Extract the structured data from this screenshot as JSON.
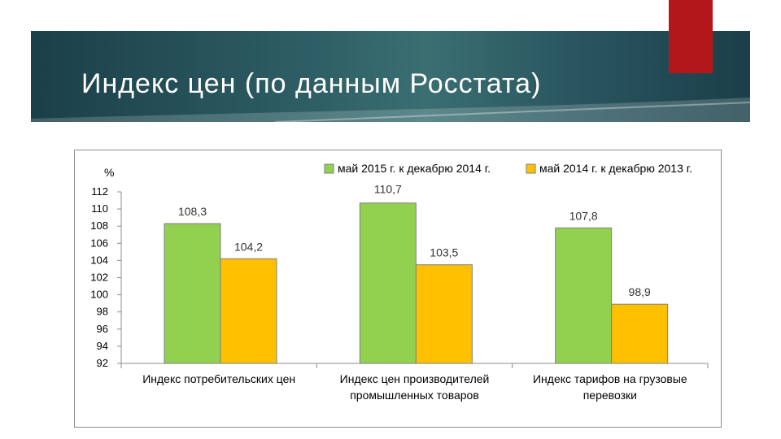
{
  "header": {
    "title": "Индекс цен (по данным Росстата)"
  },
  "colors": {
    "banner": "#2f5f66",
    "accent_tab": "#b4171b",
    "series_1": "#92d050",
    "series_2": "#ffc000"
  },
  "chart_data": {
    "type": "bar",
    "title": "",
    "ylabel": "%",
    "xlabel": "",
    "ylim": [
      92,
      112
    ],
    "yticks": [
      112,
      110,
      108,
      106,
      104,
      102,
      100,
      98,
      96,
      94,
      92
    ],
    "grid": false,
    "legend_position": "top-right",
    "categories": [
      [
        "Индекс потребительских цен"
      ],
      [
        "Индекс цен производителей",
        "промышленных товаров"
      ],
      [
        "Индекс тарифов на грузовые",
        "перевозки"
      ]
    ],
    "series": [
      {
        "name": "май 2015 г. к декабрю 2014 г.",
        "color": "#92d050",
        "values": [
          108.3,
          110.7,
          107.8
        ],
        "labels": [
          "108,3",
          "110,7",
          "107,8"
        ]
      },
      {
        "name": "май 2014 г. к декабрю 2013 г.",
        "color": "#ffc000",
        "values": [
          104.2,
          103.5,
          98.9
        ],
        "labels": [
          "104,2",
          "103,5",
          "98,9"
        ]
      }
    ]
  }
}
